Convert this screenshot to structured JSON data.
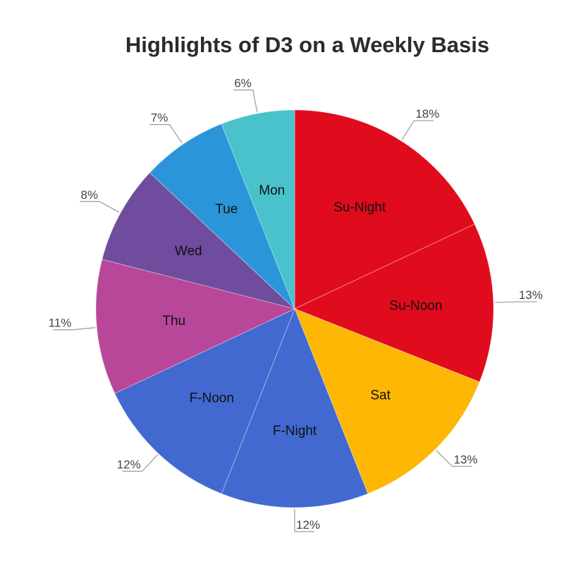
{
  "chart_data": {
    "type": "pie",
    "title": "Highlights of D3 on a Weekly Basis",
    "slices": [
      {
        "label": "Su-Night",
        "value": 18,
        "value_label": "18%",
        "color": "#e00b1c"
      },
      {
        "label": "Su-Noon",
        "value": 13,
        "value_label": "13%",
        "color": "#e00b1c"
      },
      {
        "label": "Sat",
        "value": 13,
        "value_label": "13%",
        "color": "#fdb704"
      },
      {
        "label": "F-Night",
        "value": 12,
        "value_label": "12%",
        "color": "#4169cf"
      },
      {
        "label": "F-Noon",
        "value": 12,
        "value_label": "12%",
        "color": "#4169cf"
      },
      {
        "label": "Thu",
        "value": 11,
        "value_label": "11%",
        "color": "#b8479a"
      },
      {
        "label": "Wed",
        "value": 8,
        "value_label": "8%",
        "color": "#6f4c9d"
      },
      {
        "label": "Tue",
        "value": 7,
        "value_label": "7%",
        "color": "#2a96d9"
      },
      {
        "label": "Mon",
        "value": 6,
        "value_label": "6%",
        "color": "#49c2cc"
      }
    ],
    "start_angle": "12 o'clock",
    "direction": "clockwise",
    "legend": "none",
    "label_style": "category inside slice, percentage outside with leader line"
  }
}
